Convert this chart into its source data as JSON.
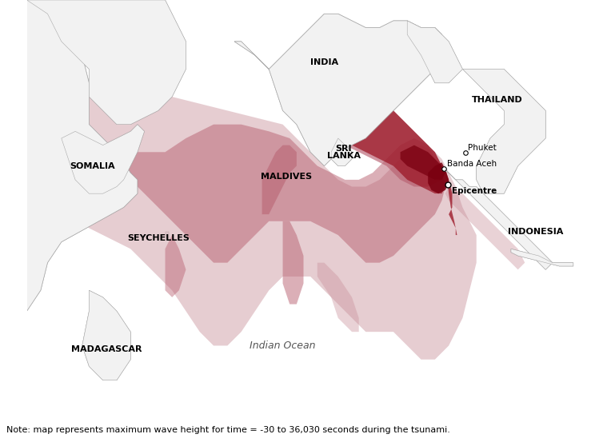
{
  "note": "Note: map represents maximum wave height for time = -30 to 36,030 seconds during the tsunami.",
  "bg_ocean": "#c5d5e5",
  "bg_land": "#f2f2f2",
  "land_edge": "#aaaaaa",
  "wave_light": "#c8909a",
  "wave_medium": "#b86070",
  "wave_dark": "#991020",
  "wave_darkest": "#7a0010",
  "epicentre": [
    95.9,
    3.3
  ],
  "banda_aceh": [
    95.3,
    5.55
  ],
  "phuket": [
    98.4,
    7.9
  ],
  "map_extent": [
    35,
    115,
    -30,
    30
  ],
  "note_fontsize": 8.0,
  "label_fontsize": 8.0,
  "city_fontsize": 7.5
}
